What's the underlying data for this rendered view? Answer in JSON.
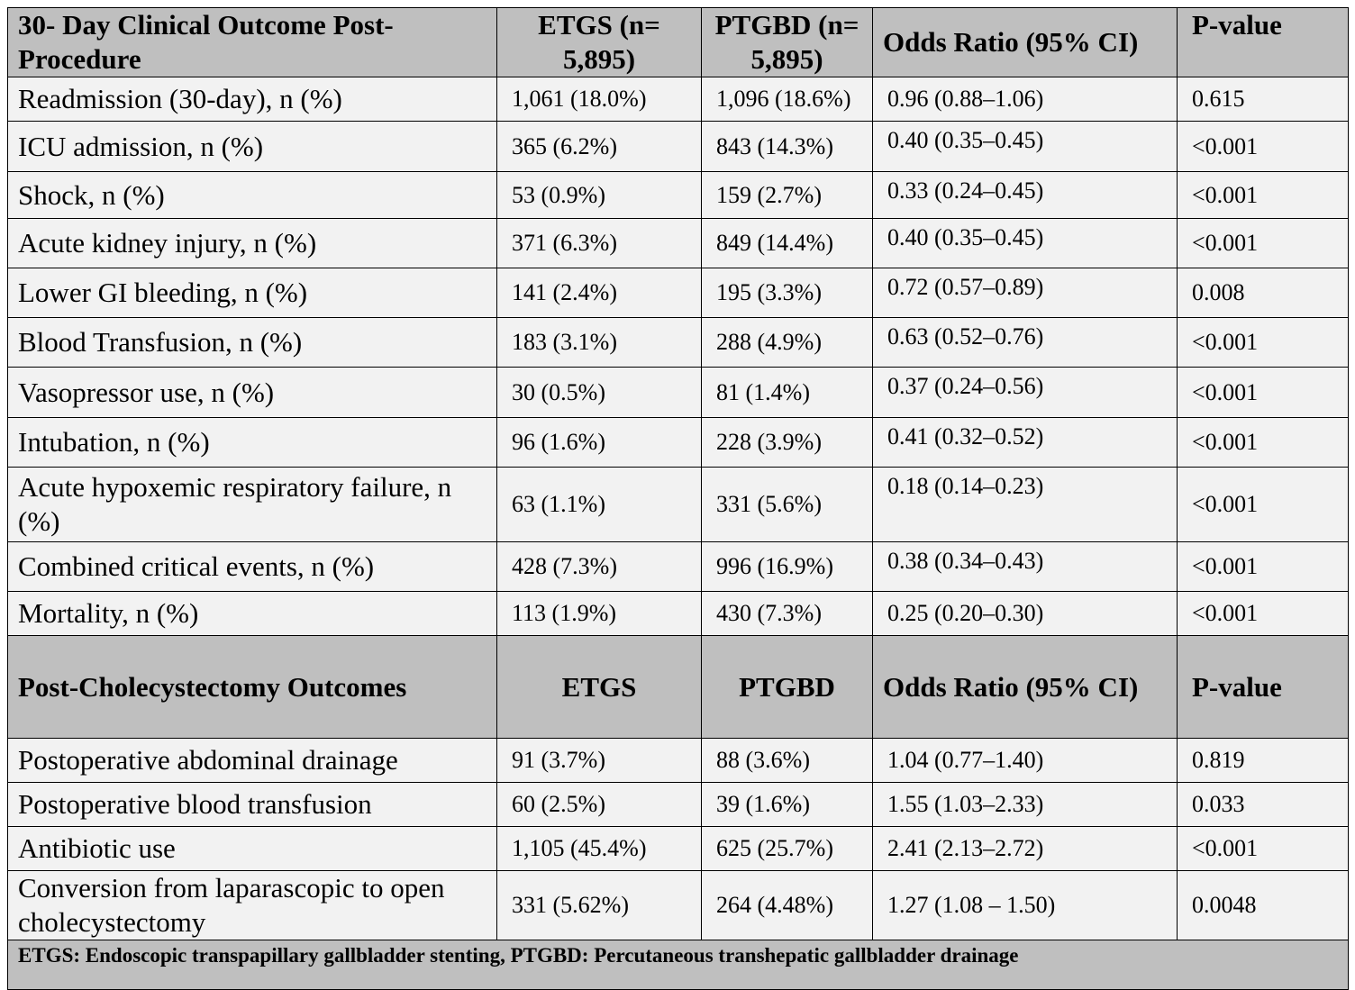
{
  "section1": {
    "headers": [
      "30- Day Clinical Outcome Post-Procedure",
      "ETGS (n= 5,895)",
      "PTGBD (n= 5,895)",
      "Odds Ratio (95% CI)",
      "P-value"
    ],
    "rows": [
      {
        "outcome": "Readmission (30-day), n  (%)",
        "etgs": "1,061 (18.0%)",
        "ptgbd": "1,096 (18.6%)",
        "or": "0.96 (0.88–1.06)",
        "p": "0.615"
      },
      {
        "outcome": "ICU admission, n  (%)",
        "etgs": "365 (6.2%)",
        "ptgbd": "843 (14.3%)",
        "or": "0.40 (0.35–0.45)",
        "p": "<0.001"
      },
      {
        "outcome": "Shock, n  (%)",
        "etgs": "53 (0.9%)",
        "ptgbd": "159 (2.7%)",
        "or": "0.33 (0.24–0.45)",
        "p": "<0.001"
      },
      {
        "outcome": "Acute kidney injury, n  (%)",
        "etgs": "371 (6.3%)",
        "ptgbd": "849 (14.4%)",
        "or": "0.40 (0.35–0.45)",
        "p": "<0.001"
      },
      {
        "outcome": "Lower GI bleeding, n  (%)",
        "etgs": "141 (2.4%)",
        "ptgbd": "195 (3.3%)",
        "or": "0.72 (0.57–0.89)",
        "p": "0.008"
      },
      {
        "outcome": "Blood Transfusion, n  (%)",
        "etgs": "183 (3.1%)",
        "ptgbd": "288 (4.9%)",
        "or": "0.63 (0.52–0.76)",
        "p": "<0.001"
      },
      {
        "outcome": "Vasopressor use, n  (%)",
        "etgs": "30 (0.5%)",
        "ptgbd": "81 (1.4%)",
        "or": "0.37 (0.24–0.56)",
        "p": "<0.001"
      },
      {
        "outcome": "Intubation, n  (%)",
        "etgs": "96 (1.6%)",
        "ptgbd": "228 (3.9%)",
        "or": "0.41 (0.32–0.52)",
        "p": "<0.001"
      },
      {
        "outcome": "Acute hypoxemic respiratory failure, n  (%)",
        "etgs": "63 (1.1%)",
        "ptgbd": "331 (5.6%)",
        "or": "0.18 (0.14–0.23)",
        "p": "<0.001"
      },
      {
        "outcome": "Combined critical events, n  (%)",
        "etgs": "428 (7.3%)",
        "ptgbd": "996 (16.9%)",
        "or": "0.38 (0.34–0.43)",
        "p": "<0.001"
      },
      {
        "outcome": "Mortality, n  (%)",
        "etgs": "113 (1.9%)",
        "ptgbd": "430 (7.3%)",
        "or": "0.25 (0.20–0.30)",
        "p": "<0.001"
      }
    ]
  },
  "section2": {
    "headers": [
      "Post-Cholecystectomy Outcomes",
      "ETGS",
      "PTGBD",
      "Odds Ratio (95% CI)",
      "P-value"
    ],
    "rows": [
      {
        "outcome": "Postoperative abdominal drainage",
        "etgs": "91 (3.7%)",
        "ptgbd": "88 (3.6%)",
        "or": "1.04 (0.77–1.40)",
        "p": "0.819"
      },
      {
        "outcome": "Postoperative blood transfusion",
        "etgs": "60 (2.5%)",
        "ptgbd": "39 (1.6%)",
        "or": "1.55 (1.03–2.33)",
        "p": "0.033"
      },
      {
        "outcome": "Antibiotic use",
        "etgs": "1,105 (45.4%)",
        "ptgbd": "625 (25.7%)",
        "or": "2.41 (2.13–2.72)",
        "p": "<0.001"
      },
      {
        "outcome": "Conversion from laparascopic to open cholecystectomy",
        "etgs": "331 (5.62%)",
        "ptgbd": "264 (4.48%)",
        "or": "1.27 (1.08 – 1.50)",
        "p": "0.0048"
      }
    ]
  },
  "footnote": "ETGS: Endoscopic transpapillary gallbladder stenting, PTGBD: Percutaneous transhepatic gallbladder drainage"
}
